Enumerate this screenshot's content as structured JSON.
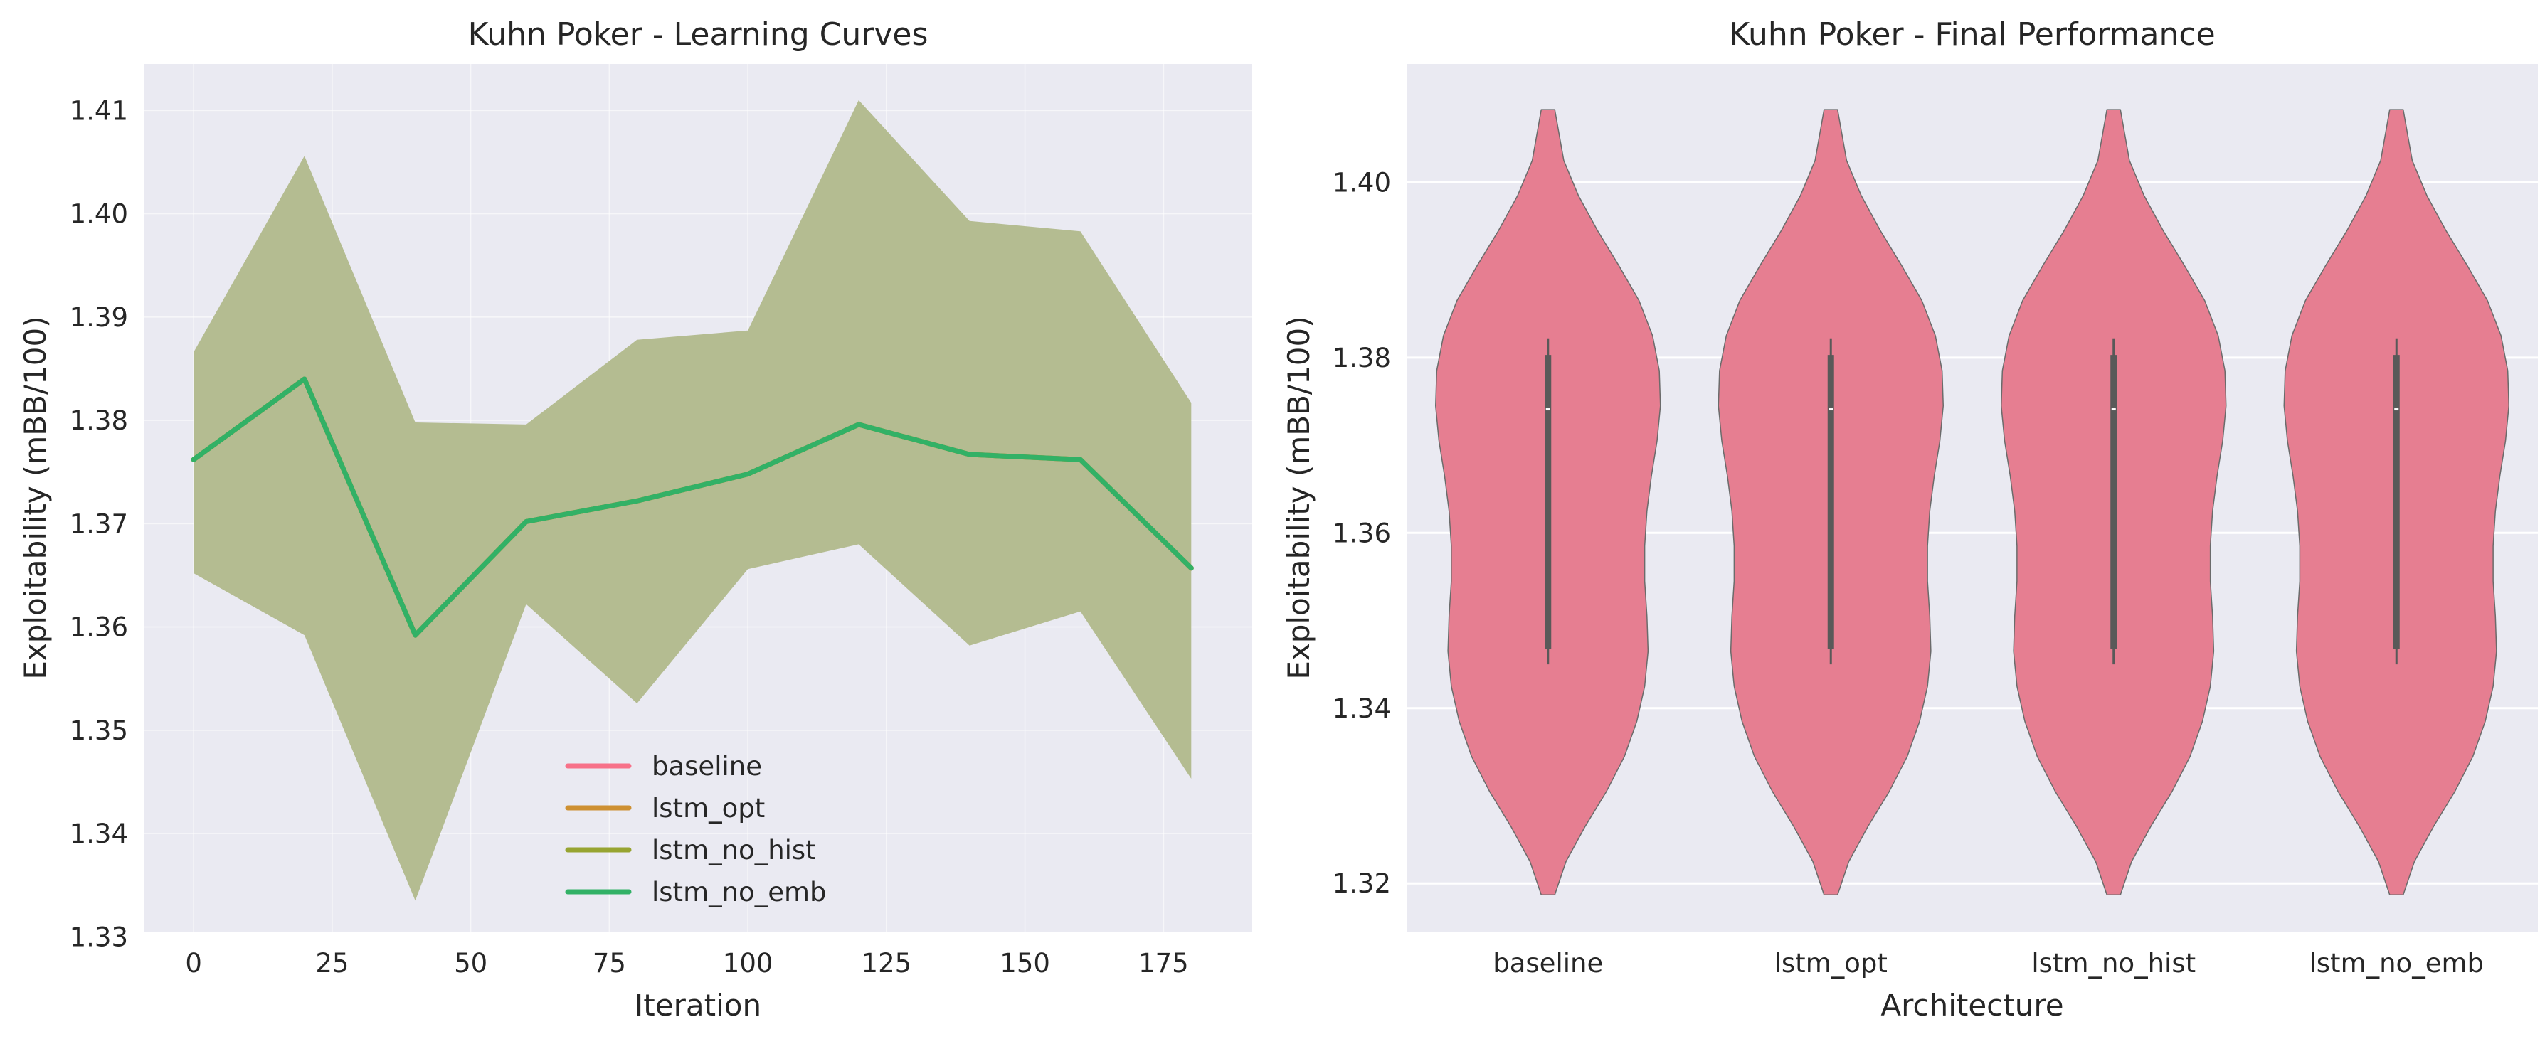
{
  "figure": {
    "background": "#ffffff",
    "panel_background": "#eaeaf2",
    "grid_color": "#ffffff"
  },
  "chart_data": [
    {
      "type": "line",
      "title": "Kuhn Poker - Learning Curves",
      "xlabel": "Iteration",
      "ylabel": "Exploitability (mBB/100)",
      "xlim": [
        -9,
        191
      ],
      "ylim": [
        1.3305,
        1.4145
      ],
      "xticks": [
        0,
        25,
        50,
        75,
        100,
        125,
        150,
        175
      ],
      "xtick_labels": [
        "0",
        "25",
        "50",
        "75",
        "100",
        "125",
        "150",
        "175"
      ],
      "yticks": [
        1.33,
        1.34,
        1.35,
        1.36,
        1.37,
        1.38,
        1.39,
        1.4,
        1.41
      ],
      "ytick_labels": [
        "1.33",
        "1.34",
        "1.35",
        "1.36",
        "1.37",
        "1.38",
        "1.39",
        "1.40",
        "1.41"
      ],
      "grid": true,
      "legend_position": "lower-center",
      "x": [
        0,
        20,
        40,
        60,
        80,
        100,
        120,
        140,
        160,
        180
      ],
      "series": [
        {
          "name": "baseline",
          "color": "#f77189",
          "values": [
            1.3762,
            1.384,
            1.3592,
            1.3702,
            1.3722,
            1.3748,
            1.3796,
            1.3767,
            1.3762,
            1.3657
          ],
          "band_lower": [
            1.3652,
            1.3592,
            1.3335,
            1.3622,
            1.3526,
            1.3656,
            1.368,
            1.3582,
            1.3615,
            1.3453
          ],
          "band_upper": [
            1.3866,
            1.4056,
            1.3798,
            1.3796,
            1.3878,
            1.3887,
            1.411,
            1.3993,
            1.3983,
            1.3817
          ]
        },
        {
          "name": "lstm_opt",
          "color": "#ce9032",
          "values": [
            1.3762,
            1.384,
            1.3592,
            1.3702,
            1.3722,
            1.3748,
            1.3796,
            1.3767,
            1.3762,
            1.3657
          ],
          "band_lower": [
            1.3652,
            1.3592,
            1.3335,
            1.3622,
            1.3526,
            1.3656,
            1.368,
            1.3582,
            1.3615,
            1.3453
          ],
          "band_upper": [
            1.3866,
            1.4056,
            1.3798,
            1.3796,
            1.3878,
            1.3887,
            1.411,
            1.3993,
            1.3983,
            1.3817
          ]
        },
        {
          "name": "lstm_no_hist",
          "color": "#97a431",
          "values": [
            1.3762,
            1.384,
            1.3592,
            1.3702,
            1.3722,
            1.3748,
            1.3796,
            1.3767,
            1.3762,
            1.3657
          ],
          "band_lower": [
            1.3652,
            1.3592,
            1.3335,
            1.3622,
            1.3526,
            1.3656,
            1.368,
            1.3582,
            1.3615,
            1.3453
          ],
          "band_upper": [
            1.3866,
            1.4056,
            1.3798,
            1.3796,
            1.3878,
            1.3887,
            1.411,
            1.3993,
            1.3983,
            1.3817
          ]
        },
        {
          "name": "lstm_no_emb",
          "color": "#32b166",
          "values": [
            1.3762,
            1.384,
            1.3592,
            1.3702,
            1.3722,
            1.3748,
            1.3796,
            1.3767,
            1.3762,
            1.3657
          ],
          "band_lower": [
            1.3652,
            1.3592,
            1.3335,
            1.3622,
            1.3526,
            1.3656,
            1.368,
            1.3582,
            1.3615,
            1.3453
          ],
          "band_upper": [
            1.3866,
            1.4056,
            1.3798,
            1.3796,
            1.3878,
            1.3887,
            1.411,
            1.3993,
            1.3983,
            1.3817
          ]
        }
      ],
      "band_fill_color": "#b4bc91"
    },
    {
      "type": "violin",
      "title": "Kuhn Poker - Final Performance",
      "xlabel": "Architecture",
      "ylabel": "Exploitability (mBB/100)",
      "categories": [
        "baseline",
        "lstm_opt",
        "lstm_no_hist",
        "lstm_no_emb"
      ],
      "ylim": [
        1.3145,
        1.4135
      ],
      "yticks": [
        1.32,
        1.34,
        1.36,
        1.38,
        1.4
      ],
      "ytick_labels": [
        "1.32",
        "1.34",
        "1.36",
        "1.38",
        "1.40"
      ],
      "grid": true,
      "fill_color": "#e67e91",
      "edge_color": "#6b6b6b",
      "box_color": "#595959",
      "violins": [
        {
          "category": "baseline",
          "min": 1.3187,
          "max": 1.4083,
          "whisker_low": 1.345,
          "whisker_high": 1.3822,
          "q1": 1.3468,
          "median": 1.3741,
          "q3": 1.3803
        },
        {
          "category": "lstm_opt",
          "min": 1.3187,
          "max": 1.4083,
          "whisker_low": 1.345,
          "whisker_high": 1.3822,
          "q1": 1.3468,
          "median": 1.3741,
          "q3": 1.3803
        },
        {
          "category": "lstm_no_hist",
          "min": 1.3187,
          "max": 1.4083,
          "whisker_low": 1.345,
          "whisker_high": 1.3822,
          "q1": 1.3468,
          "median": 1.3741,
          "q3": 1.3803
        },
        {
          "category": "lstm_no_emb",
          "min": 1.3187,
          "max": 1.4083,
          "whisker_low": 1.345,
          "whisker_high": 1.3822,
          "q1": 1.3468,
          "median": 1.3741,
          "q3": 1.3803
        }
      ],
      "density_profile": {
        "y": [
          1.3187,
          1.3225,
          1.3265,
          1.3305,
          1.3345,
          1.3385,
          1.3425,
          1.3465,
          1.3505,
          1.3545,
          1.3585,
          1.3625,
          1.3665,
          1.3705,
          1.3745,
          1.3785,
          1.3825,
          1.3865,
          1.3905,
          1.3945,
          1.3985,
          1.4025,
          1.4083
        ],
        "relative_width": [
          0.06,
          0.16,
          0.33,
          0.52,
          0.68,
          0.79,
          0.86,
          0.89,
          0.88,
          0.86,
          0.86,
          0.88,
          0.92,
          0.97,
          1.0,
          0.99,
          0.93,
          0.81,
          0.63,
          0.44,
          0.27,
          0.14,
          0.06
        ]
      }
    }
  ]
}
